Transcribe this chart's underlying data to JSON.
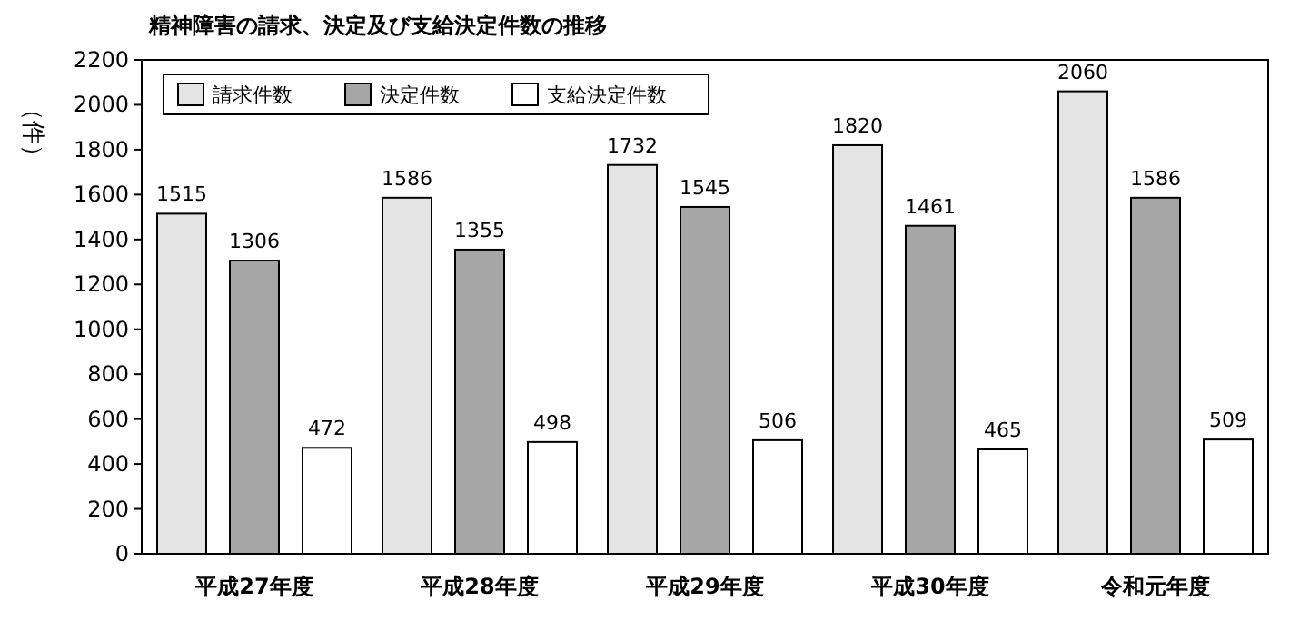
{
  "chart_data": {
    "type": "bar",
    "title": "精神障害の請求、決定及び支給決定件数の推移",
    "ylabel": "（件）",
    "categories": [
      "平成27年度",
      "平成28年度",
      "平成29年度",
      "平成30年度",
      "令和元年度"
    ],
    "series": [
      {
        "name": "請求件数",
        "color": "#e4e4e4",
        "values": [
          1515,
          1586,
          1732,
          1820,
          2060
        ]
      },
      {
        "name": "決定件数",
        "color": "#a6a6a6",
        "values": [
          1306,
          1355,
          1545,
          1461,
          1586
        ]
      },
      {
        "name": "支給決定件数",
        "color": "#ffffff",
        "values": [
          472,
          498,
          506,
          465,
          509
        ]
      }
    ],
    "ylim": [
      0,
      2200
    ],
    "yticks": [
      0,
      200,
      400,
      600,
      800,
      1000,
      1200,
      1400,
      1600,
      1800,
      2000,
      2200
    ],
    "data_labels": true,
    "legend": "top left",
    "grid": false
  }
}
